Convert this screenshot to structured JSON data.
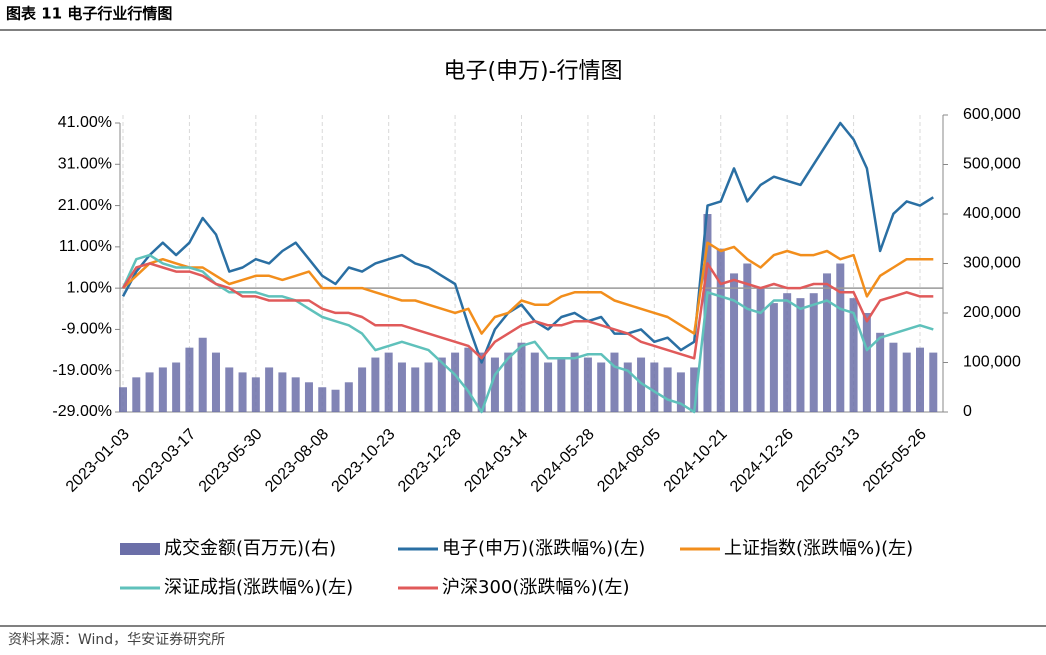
{
  "header": "图表 11 电子行业行情图",
  "source": "资料来源：Wind，华安证券研究所",
  "chart_data": {
    "type": "combo",
    "title": "电子(申万)-行情图",
    "categories": [
      "2023-01-03",
      null,
      null,
      null,
      null,
      "2023-03-17",
      null,
      null,
      null,
      null,
      "2023-05-30",
      null,
      null,
      null,
      null,
      "2023-08-08",
      null,
      null,
      null,
      null,
      "2023-10-23",
      null,
      null,
      null,
      null,
      "2023-12-28",
      null,
      null,
      null,
      null,
      "2024-03-14",
      null,
      null,
      null,
      null,
      "2024-05-28",
      null,
      null,
      null,
      null,
      "2024-08-05",
      null,
      null,
      null,
      null,
      "2024-10-21",
      null,
      null,
      null,
      null,
      "2024-12-26",
      null,
      null,
      null,
      null,
      "2025-03-13",
      null,
      null,
      null,
      null,
      "2025-05-26",
      null
    ],
    "ylim": [
      -29,
      41
    ],
    "yticks": [
      {
        "value": 41,
        "label": "41.00%"
      },
      {
        "value": 31,
        "label": "31.00%"
      },
      {
        "value": 21,
        "label": "21.00%"
      },
      {
        "value": 11,
        "label": "11.00%"
      },
      {
        "value": 1,
        "label": "1.00%"
      },
      {
        "value": -9,
        "label": "-9.00%"
      },
      {
        "value": -19,
        "label": "-19.00%"
      },
      {
        "value": -29,
        "label": "-29.00%"
      }
    ],
    "y2lim": [
      0,
      600000
    ],
    "y2ticks": [
      {
        "value": 600000,
        "label": "600,000"
      },
      {
        "value": 500000,
        "label": "500,000"
      },
      {
        "value": 400000,
        "label": "400,000"
      },
      {
        "value": 300000,
        "label": "300,000"
      },
      {
        "value": 200000,
        "label": "200,000"
      },
      {
        "value": 100000,
        "label": "100,000"
      },
      0
    ],
    "baseline": 1,
    "grid": true,
    "series": [
      {
        "name": "成交金额(百万元)(右)",
        "type": "bar",
        "axis": "y2",
        "color": "#6b6fa8",
        "values": [
          50000,
          70000,
          80000,
          90000,
          100000,
          130000,
          150000,
          120000,
          90000,
          80000,
          70000,
          90000,
          80000,
          70000,
          60000,
          50000,
          45000,
          60000,
          90000,
          110000,
          120000,
          100000,
          90000,
          100000,
          110000,
          120000,
          130000,
          120000,
          110000,
          120000,
          140000,
          120000,
          100000,
          110000,
          120000,
          110000,
          100000,
          120000,
          100000,
          110000,
          100000,
          90000,
          80000,
          90000,
          400000,
          330000,
          280000,
          300000,
          250000,
          220000,
          240000,
          230000,
          240000,
          280000,
          300000,
          230000,
          200000,
          160000,
          140000,
          120000,
          130000,
          120000
        ]
      },
      {
        "name": "电子(申万)(涨跌幅%)(左)",
        "type": "line",
        "color": "#2a6fa3",
        "values": [
          -1,
          5,
          9,
          12,
          9,
          12,
          18,
          14,
          5,
          6,
          8,
          7,
          10,
          12,
          8,
          4,
          2,
          6,
          5,
          7,
          8,
          9,
          7,
          6,
          4,
          2,
          -8,
          -17,
          -9,
          -5,
          -3,
          -7,
          -9,
          -6,
          -5,
          -7,
          -6,
          -10,
          -10,
          -9,
          -12,
          -11,
          -14,
          -12,
          21,
          22,
          30,
          22,
          26,
          28,
          27,
          26,
          31,
          36,
          41,
          37,
          30,
          10,
          19,
          22,
          21,
          23
        ]
      },
      {
        "name": "上证指数(涨跌幅%)(左)",
        "type": "line",
        "color": "#f28e1c",
        "values": [
          1,
          4,
          7,
          8,
          7,
          6,
          6,
          4,
          2,
          3,
          4,
          4,
          3,
          4,
          5,
          1,
          1,
          1,
          1,
          0,
          -1,
          -2,
          -2,
          -3,
          -4,
          -5,
          -4,
          -10,
          -6,
          -5,
          -2,
          -3,
          -3,
          -1,
          0,
          0,
          0,
          -2,
          -3,
          -4,
          -5,
          -6,
          -8,
          -10,
          12,
          10,
          11,
          8,
          6,
          9,
          10,
          9,
          9,
          10,
          8,
          9,
          -1,
          4,
          6,
          8,
          8,
          8
        ]
      },
      {
        "name": "深证成指(涨跌幅%)(左)",
        "type": "line",
        "color": "#5fc1bb",
        "values": [
          1,
          8,
          9,
          7,
          6,
          6,
          5,
          2,
          0,
          0,
          0,
          -1,
          -1,
          -2,
          -4,
          -6,
          -7,
          -8,
          -10,
          -14,
          -13,
          -12,
          -13,
          -14,
          -17,
          -20,
          -24,
          -29,
          -20,
          -16,
          -13,
          -12,
          -16,
          -16,
          -16,
          -15,
          -15,
          -18,
          -19,
          -22,
          -24,
          -26,
          -27,
          -29,
          0,
          -1,
          -2,
          -4,
          -5,
          -2,
          -2,
          -4,
          -3,
          -2,
          -4,
          -5,
          -14,
          -11,
          -10,
          -9,
          -8,
          -9
        ]
      },
      {
        "name": "沪深300(涨跌幅%)(左)",
        "type": "line",
        "color": "#e05a5a",
        "values": [
          1,
          6,
          7,
          6,
          5,
          5,
          4,
          2,
          1,
          -1,
          -1,
          -2,
          -2,
          -2,
          -2,
          -4,
          -5,
          -5,
          -6,
          -8,
          -8,
          -8,
          -9,
          -10,
          -11,
          -12,
          -13,
          -16,
          -12,
          -10,
          -8,
          -7,
          -8,
          -8,
          -7,
          -7,
          -8,
          -9,
          -10,
          -12,
          -13,
          -14,
          -15,
          -16,
          7,
          2,
          3,
          2,
          1,
          2,
          1,
          1,
          2,
          2,
          0,
          0,
          -7,
          -2,
          -1,
          0,
          -1,
          -1
        ]
      }
    ]
  }
}
